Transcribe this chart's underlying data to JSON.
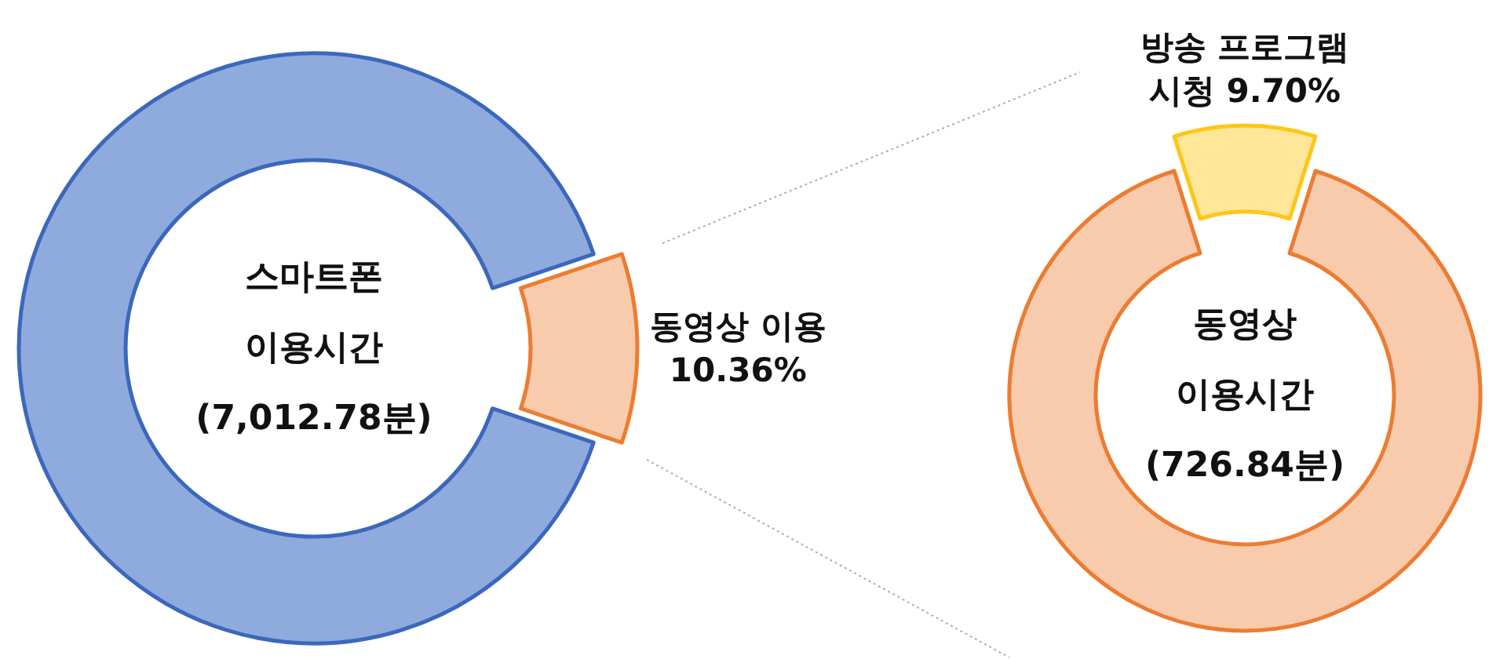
{
  "chart_data": [
    {
      "type": "donut",
      "title": "스마트폰 이용시간 (7,012.78분)",
      "categories": [
        null,
        "동영상 이용"
      ],
      "values": [
        89.64,
        10.36
      ],
      "colors": [
        "#8faadc",
        "#f8cbad"
      ],
      "value_labels": [
        null,
        "10.36%"
      ]
    },
    {
      "type": "donut",
      "title": "동영상 이용시간 (726.84분)",
      "categories": [
        null,
        "방송 프로그램 시청"
      ],
      "values": [
        90.3,
        9.7
      ],
      "colors": [
        "#f8cbad",
        "#ffe699"
      ],
      "value_labels": [
        null,
        "9.70%"
      ]
    }
  ]
}
